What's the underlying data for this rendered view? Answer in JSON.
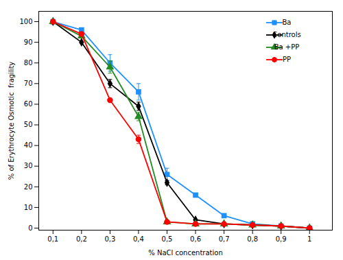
{
  "chart_data": {
    "type": "line",
    "xlabel": "% NaCl concentration",
    "ylabel": "% of Erythrocyte Osmotic  fragility",
    "x": [
      0.1,
      0.2,
      0.3,
      0.4,
      0.5,
      0.6,
      0.7,
      0.8,
      0.9,
      1.0
    ],
    "series": [
      {
        "name": "Ba",
        "color": "#1E90FF",
        "marker": "square",
        "values": [
          100,
          96,
          80,
          66,
          26,
          16,
          6,
          2,
          1,
          0
        ],
        "errors": [
          0,
          1,
          4,
          4,
          3,
          0,
          0,
          0,
          0,
          0
        ]
      },
      {
        "name": "Controls",
        "color": "#000000",
        "marker": "diamond",
        "values": [
          100,
          90,
          70,
          59,
          22,
          4,
          2,
          1.5,
          1,
          0
        ],
        "errors": [
          0,
          0,
          2,
          2,
          1,
          0,
          0,
          0,
          0,
          0
        ]
      },
      {
        "name": "Ba +PP",
        "color": "#228B22",
        "marker": "triangle",
        "values": [
          100,
          93,
          78,
          54,
          3,
          2,
          2,
          1.5,
          1,
          0
        ],
        "errors": [
          0,
          1,
          3,
          2,
          0,
          0,
          0,
          0,
          0,
          0
        ]
      },
      {
        "name": "PP",
        "color": "#FF0000",
        "marker": "circle",
        "values": [
          100,
          94,
          62,
          43,
          3,
          2,
          2,
          1.5,
          1,
          0
        ],
        "errors": [
          0,
          0,
          0,
          2,
          0,
          0,
          0,
          0,
          0,
          0
        ]
      }
    ],
    "xlim": [
      0.05,
      1.08
    ],
    "ylim": [
      -1,
      105
    ],
    "xticks": [
      {
        "value": 0.1,
        "label": "0,1"
      },
      {
        "value": 0.2,
        "label": "0,2"
      },
      {
        "value": 0.3,
        "label": "0,3"
      },
      {
        "value": 0.4,
        "label": "0,4"
      },
      {
        "value": 0.5,
        "label": "0,5"
      },
      {
        "value": 0.6,
        "label": "0,6"
      },
      {
        "value": 0.7,
        "label": "0,7"
      },
      {
        "value": 0.8,
        "label": "0,8"
      },
      {
        "value": 0.9,
        "label": "0,9"
      },
      1
    ],
    "yticks": [
      0,
      10,
      20,
      30,
      40,
      50,
      60,
      70,
      80,
      90,
      100
    ],
    "grid": false,
    "legend": "upper right"
  }
}
